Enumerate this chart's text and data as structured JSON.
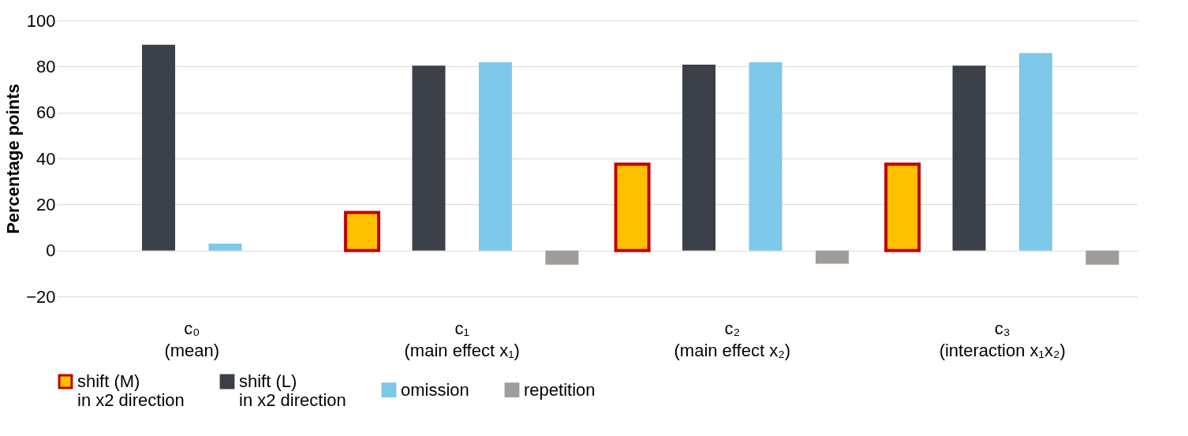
{
  "chart_data": {
    "type": "bar",
    "ylabel": "Percentage points",
    "categories": [
      "c₀\n(mean)",
      "c₁\n(main effect x₁)",
      "c₂\n(main effect x₂)",
      "c₃\n(interaction x₁x₂)"
    ],
    "series": [
      {
        "name": "shift (M)\nin x2 direction",
        "color": "#ffc000",
        "values": [
          null,
          16.5,
          37.5,
          37.5
        ]
      },
      {
        "name": "shift (L)\nin x2 direction",
        "color": "#3b4049",
        "values": [
          89.5,
          80.4,
          80.8,
          80.4
        ]
      },
      {
        "name": "omission",
        "color": "#7ec8ea",
        "values": [
          3,
          81.8,
          81.8,
          85.9
        ]
      },
      {
        "name": "repetition",
        "color": "#a09c9a",
        "values": [
          null,
          -6.2,
          -5.8,
          -6.2
        ]
      }
    ],
    "ylim": [
      -20,
      100
    ],
    "yticks": [
      -20,
      0,
      20,
      40,
      60,
      80,
      100
    ],
    "grid": "y",
    "legend": "bottom"
  }
}
